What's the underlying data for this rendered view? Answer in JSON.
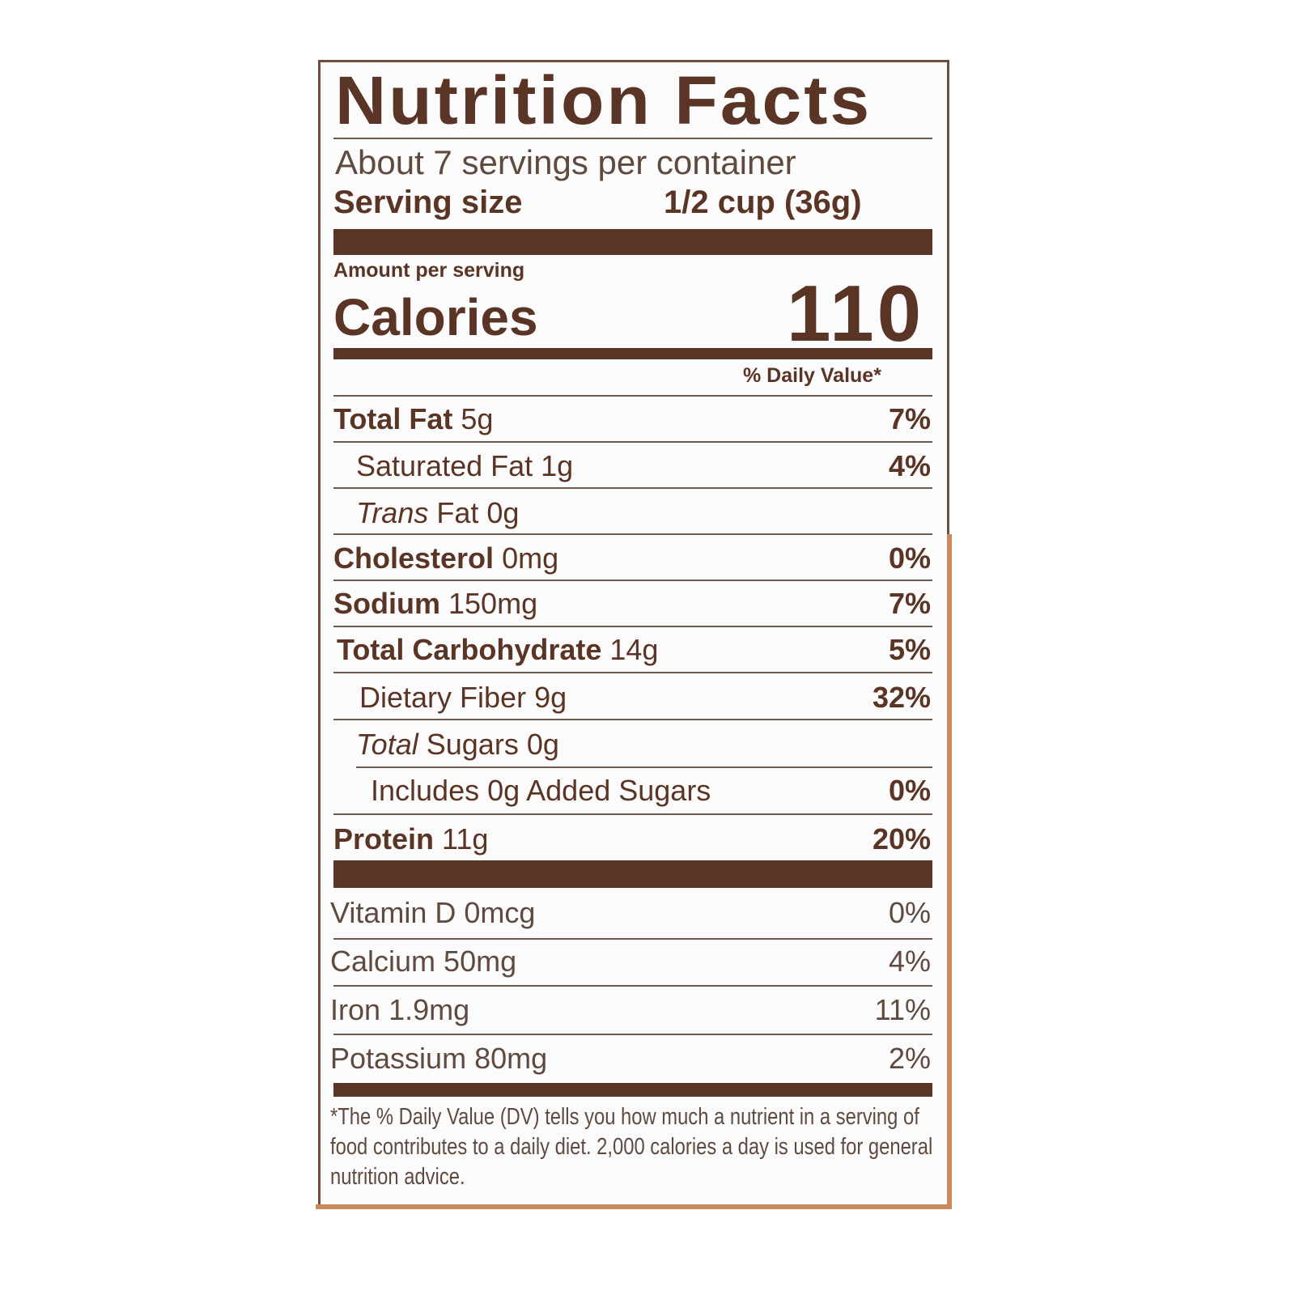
{
  "title": "Nutrition Facts",
  "servings_per_container": "About 7 servings per container",
  "serving_size": {
    "label": "Serving size",
    "value": "1/2 cup (36g)"
  },
  "amount_per_serving": "Amount per serving",
  "calories": {
    "label": "Calories",
    "value": "110"
  },
  "daily_value_header": "% Daily Value*",
  "nutrients": [
    {
      "name": "Total Fat",
      "amount": "5g",
      "dv": "7%"
    },
    {
      "name": "Saturated Fat",
      "amount": "1g",
      "dv": "4%"
    },
    {
      "name": "Trans",
      "name_rest": "Fat",
      "amount": "0g",
      "dv": ""
    },
    {
      "name": "Cholesterol",
      "amount": "0mg",
      "dv": "0%"
    },
    {
      "name": "Sodium",
      "amount": "150mg",
      "dv": "7%"
    },
    {
      "name": "Total Carbohydrate",
      "amount": "14g",
      "dv": "5%"
    },
    {
      "name": "Dietary Fiber",
      "amount": "9g",
      "dv": "32%"
    },
    {
      "name": "Total",
      "name_rest": "Sugars",
      "amount": "0g",
      "dv": ""
    },
    {
      "name": "Includes 0g Added Sugars",
      "amount": "",
      "dv": "0%"
    },
    {
      "name": "Protein",
      "amount": "11g",
      "dv": "20%"
    }
  ],
  "vitamins": [
    {
      "name": "Vitamin D",
      "amount": "0mcg",
      "dv": "0%"
    },
    {
      "name": "Calcium",
      "amount": "50mg",
      "dv": "4%"
    },
    {
      "name": "Iron",
      "amount": "1.9mg",
      "dv": "11%"
    },
    {
      "name": "Potassium",
      "amount": "80mg",
      "dv": "2%"
    }
  ],
  "footnote": "*The % Daily Value (DV) tells you how much a nutrient in a serving of food contributes to a daily diet. 2,000 calories a day is used for general nutrition advice.",
  "colors": {
    "text": "#5a3525",
    "border_accent": "#c98a5c"
  }
}
